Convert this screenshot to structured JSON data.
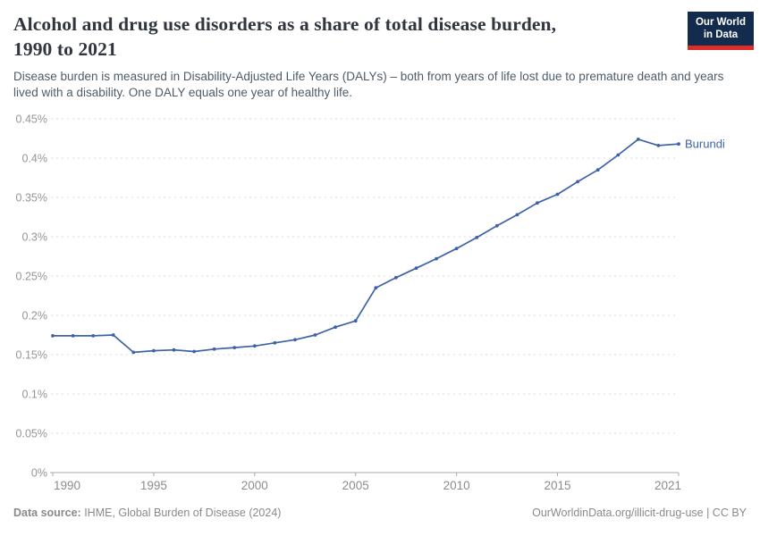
{
  "header": {
    "title_line1": "Alcohol and drug use disorders as a share of total disease burden,",
    "title_line2": "1990 to 2021",
    "subtitle": "Disease burden is measured in Disability-Adjusted Life Years (DALYs) – both from years of life lost due to premature death and years lived with a disability. One DALY equals one year of healthy life.",
    "logo": {
      "line1": "Our World",
      "line2": "in Data",
      "bg_color": "#132c4e",
      "accent_color": "#dc2e26"
    }
  },
  "chart_data": {
    "type": "line",
    "title": "Alcohol and drug use disorders as a share of total disease burden, 1990 to 2021",
    "unit": "%",
    "xlim": [
      1990,
      2021
    ],
    "ylim": [
      0,
      0.45
    ],
    "grid": "horizontal-dashed",
    "legend_position": "end-of-line",
    "x_ticks": [
      1990,
      1995,
      2000,
      2005,
      2010,
      2015,
      2021
    ],
    "y_ticks": [
      {
        "v": 0,
        "label": "0%"
      },
      {
        "v": 0.05,
        "label": "0.05%"
      },
      {
        "v": 0.1,
        "label": "0.1%"
      },
      {
        "v": 0.15,
        "label": "0.15%"
      },
      {
        "v": 0.2,
        "label": "0.2%"
      },
      {
        "v": 0.25,
        "label": "0.25%"
      },
      {
        "v": 0.3,
        "label": "0.3%"
      },
      {
        "v": 0.35,
        "label": "0.35%"
      },
      {
        "v": 0.4,
        "label": "0.4%"
      },
      {
        "v": 0.45,
        "label": "0.45%"
      }
    ],
    "series": [
      {
        "name": "Burundi",
        "color": "#3d62a8",
        "x": [
          1990,
          1991,
          1992,
          1993,
          1994,
          1995,
          1996,
          1997,
          1998,
          1999,
          2000,
          2001,
          2002,
          2003,
          2004,
          2005,
          2006,
          2007,
          2008,
          2009,
          2010,
          2011,
          2012,
          2013,
          2014,
          2015,
          2016,
          2017,
          2018,
          2019,
          2020,
          2021
        ],
        "values": [
          0.174,
          0.174,
          0.174,
          0.175,
          0.153,
          0.155,
          0.156,
          0.154,
          0.157,
          0.159,
          0.161,
          0.165,
          0.169,
          0.175,
          0.185,
          0.193,
          0.235,
          0.248,
          0.26,
          0.272,
          0.285,
          0.299,
          0.314,
          0.328,
          0.343,
          0.354,
          0.37,
          0.385,
          0.404,
          0.424,
          0.416,
          0.418
        ]
      }
    ]
  },
  "footer": {
    "source_label": "Data source:",
    "source_text": " IHME, Global Burden of Disease (2024)",
    "rights": "OurWorldinData.org/illicit-drug-use | CC BY"
  }
}
